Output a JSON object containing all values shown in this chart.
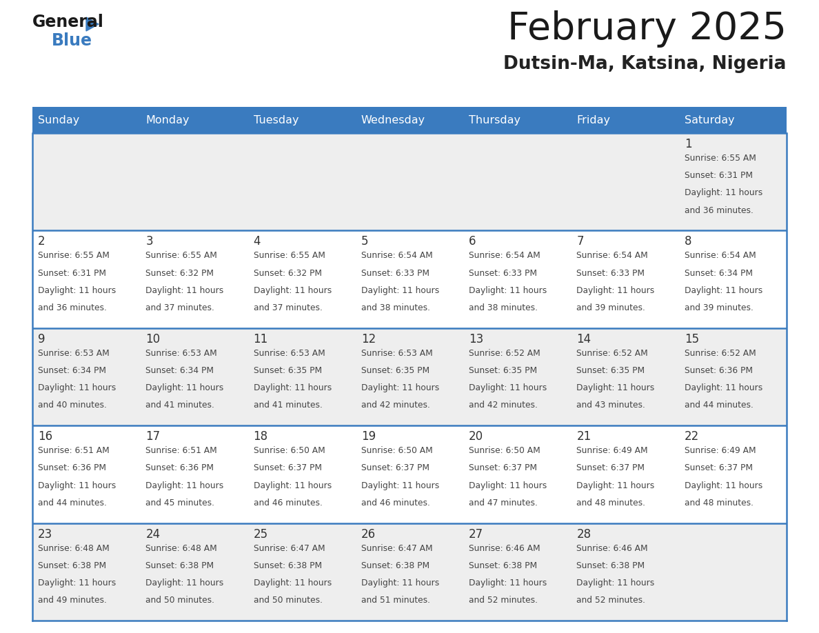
{
  "title": "February 2025",
  "subtitle": "Dutsin-Ma, Katsina, Nigeria",
  "header_bg": "#3a7bbf",
  "header_text": "#ffffff",
  "cell_bg_light": "#eeeeee",
  "cell_bg_white": "#ffffff",
  "border_color": "#3a7bbf",
  "sep_color": "#cccccc",
  "days_of_week": [
    "Sunday",
    "Monday",
    "Tuesday",
    "Wednesday",
    "Thursday",
    "Friday",
    "Saturday"
  ],
  "title_color": "#1a1a1a",
  "subtitle_color": "#222222",
  "day_num_color": "#333333",
  "info_color": "#444444",
  "calendar": [
    [
      null,
      null,
      null,
      null,
      null,
      null,
      {
        "day": "1",
        "sunrise": "6:55 AM",
        "sunset": "6:31 PM",
        "daylight": "11 hours",
        "daylight2": "and 36 minutes."
      }
    ],
    [
      {
        "day": "2",
        "sunrise": "6:55 AM",
        "sunset": "6:31 PM",
        "daylight": "11 hours",
        "daylight2": "and 36 minutes."
      },
      {
        "day": "3",
        "sunrise": "6:55 AM",
        "sunset": "6:32 PM",
        "daylight": "11 hours",
        "daylight2": "and 37 minutes."
      },
      {
        "day": "4",
        "sunrise": "6:55 AM",
        "sunset": "6:32 PM",
        "daylight": "11 hours",
        "daylight2": "and 37 minutes."
      },
      {
        "day": "5",
        "sunrise": "6:54 AM",
        "sunset": "6:33 PM",
        "daylight": "11 hours",
        "daylight2": "and 38 minutes."
      },
      {
        "day": "6",
        "sunrise": "6:54 AM",
        "sunset": "6:33 PM",
        "daylight": "11 hours",
        "daylight2": "and 38 minutes."
      },
      {
        "day": "7",
        "sunrise": "6:54 AM",
        "sunset": "6:33 PM",
        "daylight": "11 hours",
        "daylight2": "and 39 minutes."
      },
      {
        "day": "8",
        "sunrise": "6:54 AM",
        "sunset": "6:34 PM",
        "daylight": "11 hours",
        "daylight2": "and 39 minutes."
      }
    ],
    [
      {
        "day": "9",
        "sunrise": "6:53 AM",
        "sunset": "6:34 PM",
        "daylight": "11 hours",
        "daylight2": "and 40 minutes."
      },
      {
        "day": "10",
        "sunrise": "6:53 AM",
        "sunset": "6:34 PM",
        "daylight": "11 hours",
        "daylight2": "and 41 minutes."
      },
      {
        "day": "11",
        "sunrise": "6:53 AM",
        "sunset": "6:35 PM",
        "daylight": "11 hours",
        "daylight2": "and 41 minutes."
      },
      {
        "day": "12",
        "sunrise": "6:53 AM",
        "sunset": "6:35 PM",
        "daylight": "11 hours",
        "daylight2": "and 42 minutes."
      },
      {
        "day": "13",
        "sunrise": "6:52 AM",
        "sunset": "6:35 PM",
        "daylight": "11 hours",
        "daylight2": "and 42 minutes."
      },
      {
        "day": "14",
        "sunrise": "6:52 AM",
        "sunset": "6:35 PM",
        "daylight": "11 hours",
        "daylight2": "and 43 minutes."
      },
      {
        "day": "15",
        "sunrise": "6:52 AM",
        "sunset": "6:36 PM",
        "daylight": "11 hours",
        "daylight2": "and 44 minutes."
      }
    ],
    [
      {
        "day": "16",
        "sunrise": "6:51 AM",
        "sunset": "6:36 PM",
        "daylight": "11 hours",
        "daylight2": "and 44 minutes."
      },
      {
        "day": "17",
        "sunrise": "6:51 AM",
        "sunset": "6:36 PM",
        "daylight": "11 hours",
        "daylight2": "and 45 minutes."
      },
      {
        "day": "18",
        "sunrise": "6:50 AM",
        "sunset": "6:37 PM",
        "daylight": "11 hours",
        "daylight2": "and 46 minutes."
      },
      {
        "day": "19",
        "sunrise": "6:50 AM",
        "sunset": "6:37 PM",
        "daylight": "11 hours",
        "daylight2": "and 46 minutes."
      },
      {
        "day": "20",
        "sunrise": "6:50 AM",
        "sunset": "6:37 PM",
        "daylight": "11 hours",
        "daylight2": "and 47 minutes."
      },
      {
        "day": "21",
        "sunrise": "6:49 AM",
        "sunset": "6:37 PM",
        "daylight": "11 hours",
        "daylight2": "and 48 minutes."
      },
      {
        "day": "22",
        "sunrise": "6:49 AM",
        "sunset": "6:37 PM",
        "daylight": "11 hours",
        "daylight2": "and 48 minutes."
      }
    ],
    [
      {
        "day": "23",
        "sunrise": "6:48 AM",
        "sunset": "6:38 PM",
        "daylight": "11 hours",
        "daylight2": "and 49 minutes."
      },
      {
        "day": "24",
        "sunrise": "6:48 AM",
        "sunset": "6:38 PM",
        "daylight": "11 hours",
        "daylight2": "and 50 minutes."
      },
      {
        "day": "25",
        "sunrise": "6:47 AM",
        "sunset": "6:38 PM",
        "daylight": "11 hours",
        "daylight2": "and 50 minutes."
      },
      {
        "day": "26",
        "sunrise": "6:47 AM",
        "sunset": "6:38 PM",
        "daylight": "11 hours",
        "daylight2": "and 51 minutes."
      },
      {
        "day": "27",
        "sunrise": "6:46 AM",
        "sunset": "6:38 PM",
        "daylight": "11 hours",
        "daylight2": "and 52 minutes."
      },
      {
        "day": "28",
        "sunrise": "6:46 AM",
        "sunset": "6:38 PM",
        "daylight": "11 hours",
        "daylight2": "and 52 minutes."
      },
      null
    ]
  ]
}
